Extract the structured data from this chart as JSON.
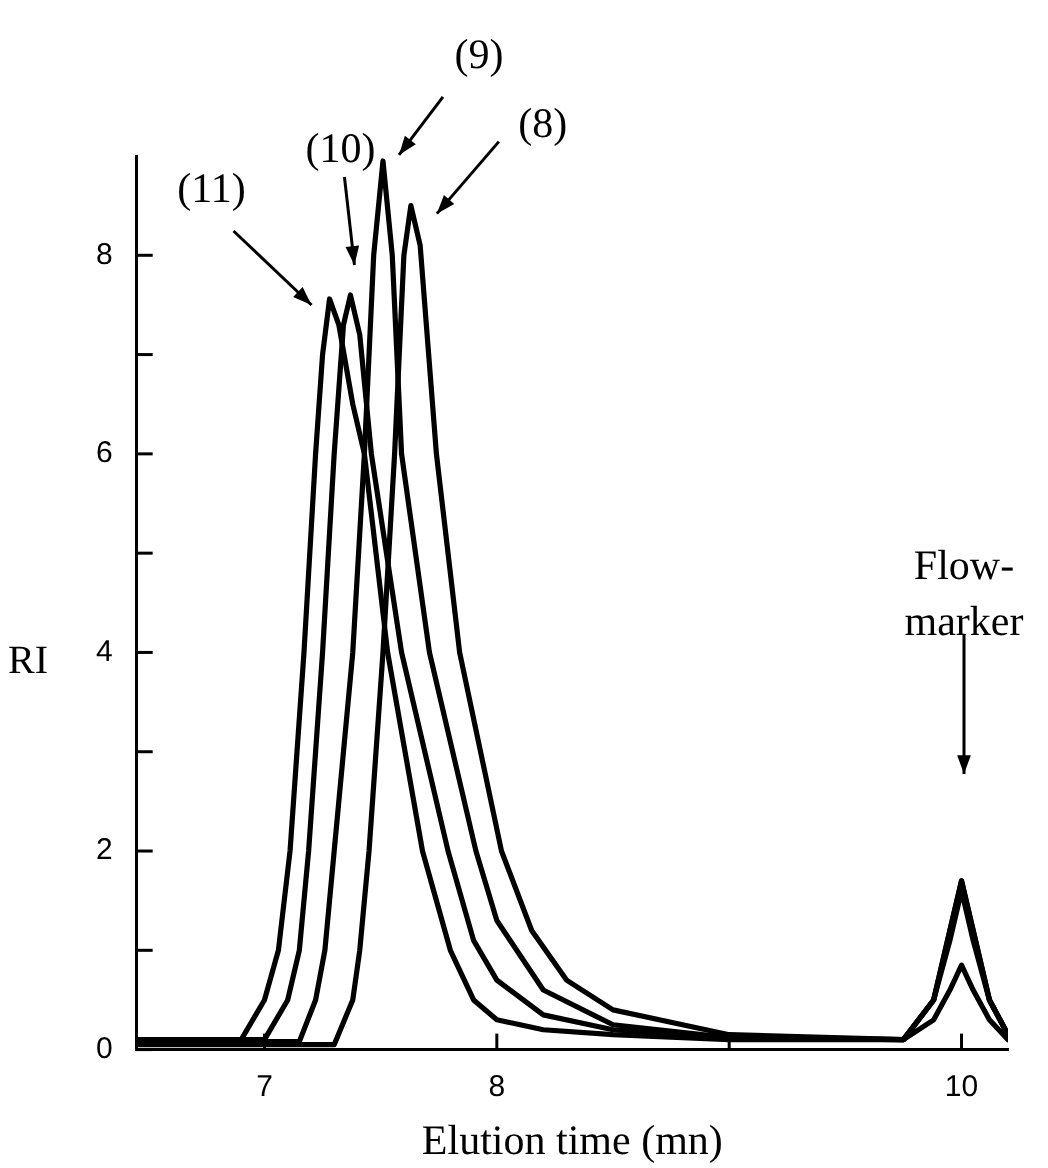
{
  "chart_data": {
    "type": "line",
    "xlabel": "Elution time (mn)",
    "ylabel": "RI",
    "xlim": [
      6.45,
      10.2
    ],
    "ylim": [
      0,
      9
    ],
    "xticks": [
      7,
      8,
      {
        "value": 9,
        "label": null
      },
      10
    ],
    "yticks": [
      0,
      {
        "value": 1,
        "label": null
      },
      2,
      {
        "value": 3,
        "label": null
      },
      4,
      {
        "value": 5,
        "label": null
      },
      6,
      {
        "value": 7,
        "label": null
      },
      8
    ],
    "grid": false,
    "legend": false,
    "marker": "none",
    "line_style": "solid",
    "series": [
      {
        "color": "#000000",
        "x": [
          6.45,
          6.9,
          7.0,
          7.06,
          7.11,
          7.17,
          7.22,
          7.25,
          7.28,
          7.32,
          7.38,
          7.43,
          7.53,
          7.68,
          7.8,
          7.9,
          8.0,
          8.2,
          8.5,
          9.0,
          9.75,
          9.88,
          9.95,
          10.0,
          10.05,
          10.12,
          10.2
        ],
        "values": [
          0.1,
          0.1,
          0.5,
          1.0,
          2,
          4,
          6,
          7.0,
          7.56,
          7.3,
          6.5,
          6,
          4,
          2,
          1,
          0.5,
          0.3,
          0.2,
          0.15,
          0.1,
          0.1,
          0.5,
          1.2,
          1.7,
          1.2,
          0.5,
          0.15
        ]
      },
      {
        "color": "#000000",
        "x": [
          6.45,
          7.0,
          7.1,
          7.15,
          7.19,
          7.25,
          7.3,
          7.34,
          7.37,
          7.41,
          7.46,
          7.59,
          7.79,
          7.9,
          8.0,
          8.2,
          8.5,
          9.0,
          9.75,
          9.88,
          9.95,
          10.0,
          10.05,
          10.12,
          10.2
        ],
        "values": [
          0.1,
          0.1,
          0.5,
          1,
          2,
          4,
          6,
          7.3,
          7.6,
          7.2,
          6,
          4,
          2,
          1.1,
          0.7,
          0.35,
          0.2,
          0.12,
          0.1,
          0.5,
          1.1,
          1.6,
          1.1,
          0.5,
          0.15
        ]
      },
      {
        "color": "#000000",
        "x": [
          6.45,
          7.15,
          7.22,
          7.26,
          7.3,
          7.38,
          7.43,
          7.47,
          7.51,
          7.55,
          7.59,
          7.71,
          7.91,
          8.0,
          8.2,
          8.5,
          9.0,
          9.75,
          9.88,
          9.95,
          10.0,
          10.05,
          10.12,
          10.2
        ],
        "values": [
          0.08,
          0.08,
          0.5,
          1,
          2,
          4,
          6,
          8,
          8.95,
          8,
          6,
          4,
          2,
          1.3,
          0.6,
          0.25,
          0.12,
          0.1,
          0.5,
          1.2,
          1.7,
          1.2,
          0.5,
          0.15
        ]
      },
      {
        "color": "#000000",
        "x": [
          6.45,
          7.3,
          7.38,
          7.41,
          7.45,
          7.51,
          7.56,
          7.6,
          7.63,
          7.67,
          7.74,
          7.84,
          8.02,
          8.15,
          8.3,
          8.5,
          9.0,
          9.75,
          9.88,
          9.95,
          10.0,
          10.05,
          10.12,
          10.2
        ],
        "values": [
          0.05,
          0.05,
          0.5,
          1,
          2,
          4,
          6,
          8,
          8.5,
          8.1,
          6,
          4,
          2,
          1.2,
          0.7,
          0.4,
          0.15,
          0.1,
          0.3,
          0.6,
          0.85,
          0.6,
          0.3,
          0.1
        ]
      }
    ],
    "annotations": [
      {
        "text": "(11)",
        "x": 7.28,
        "y": 7.56
      },
      {
        "text": "(10)",
        "x": 7.37,
        "y": 7.6
      },
      {
        "text": "(9)",
        "x": 7.51,
        "y": 8.95
      },
      {
        "text": "(8)",
        "x": 7.63,
        "y": 8.5
      },
      "Flow-\nmarker"
    ]
  }
}
